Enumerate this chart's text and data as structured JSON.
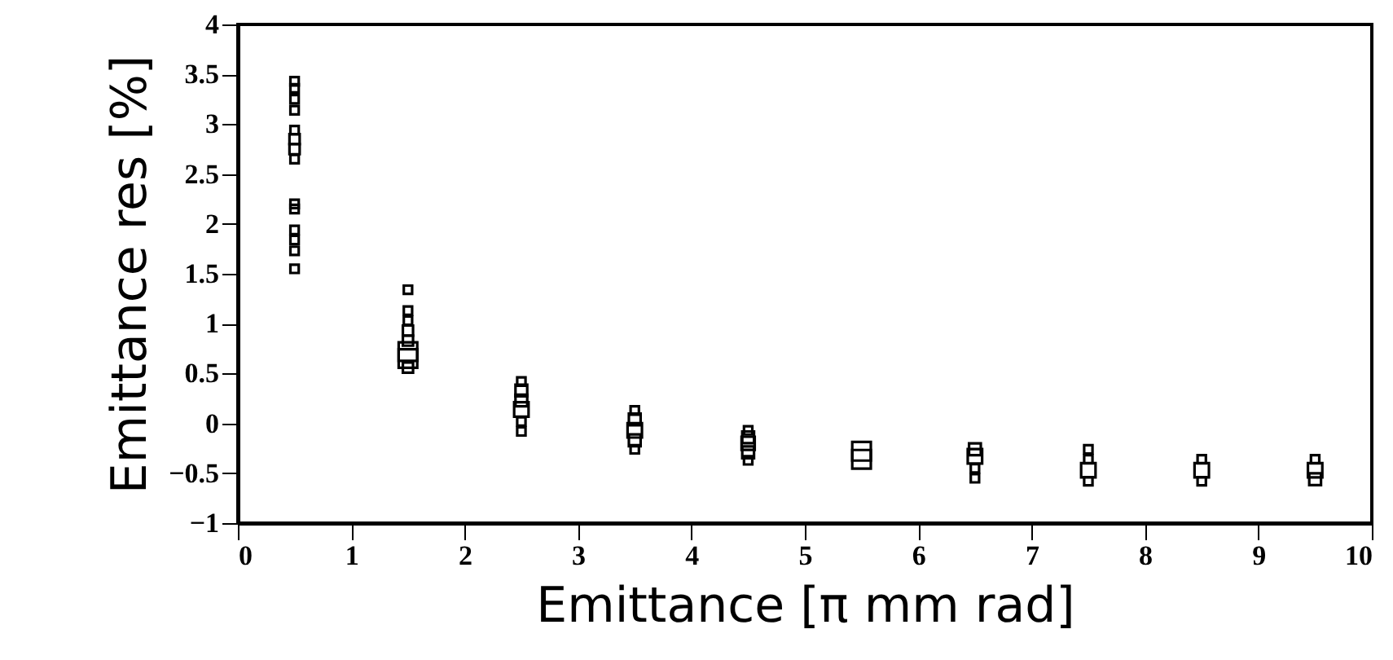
{
  "chart_data": {
    "type": "bubble",
    "xlabel": "Emittance [π mm rad]",
    "ylabel": "Emittance res [%]",
    "marker": "square",
    "grid": false,
    "xlim": [
      0,
      10
    ],
    "xticks": [
      0,
      1,
      2,
      3,
      4,
      5,
      6,
      7,
      8,
      9,
      10
    ],
    "ylim": [
      -1,
      4
    ],
    "yticks": [
      -1,
      -0.5,
      0,
      0.5,
      1,
      1.5,
      2,
      2.5,
      3,
      3.5,
      4
    ],
    "series": [
      {
        "color": "#000000",
        "x": [
          0.5,
          0.5,
          0.5,
          0.5,
          0.5,
          0.5,
          0.5,
          0.5,
          0.5,
          0.5,
          0.5,
          0.5,
          0.5,
          0.5,
          1.5,
          1.5,
          1.5,
          1.5,
          1.5,
          1.5,
          1.5,
          1.5,
          2.5,
          2.5,
          2.5,
          2.5,
          2.5,
          2.5,
          3.5,
          3.5,
          3.5,
          3.5,
          3.5,
          4.5,
          4.5,
          4.5,
          4.5,
          4.5,
          5.5,
          5.5,
          6.5,
          6.5,
          6.5,
          6.5,
          7.5,
          7.5,
          7.5,
          7.5,
          8.5,
          8.5,
          8.5,
          9.5,
          9.5,
          9.5
        ],
        "values": [
          3.43,
          3.36,
          3.25,
          3.14,
          2.94,
          2.85,
          2.75,
          2.65,
          2.2,
          2.15,
          1.94,
          1.84,
          1.73,
          1.55,
          1.34,
          1.13,
          1.03,
          0.93,
          0.83,
          0.72,
          0.65,
          0.56,
          0.42,
          0.33,
          0.23,
          0.14,
          0.02,
          -0.08,
          0.13,
          0.04,
          -0.07,
          -0.17,
          -0.26,
          -0.07,
          -0.14,
          -0.2,
          -0.29,
          -0.37,
          -0.28,
          -0.36,
          -0.26,
          -0.33,
          -0.45,
          -0.55,
          -0.26,
          -0.36,
          -0.47,
          -0.58,
          -0.36,
          -0.47,
          -0.58,
          -0.36,
          -0.47,
          -0.56
        ],
        "sizes": [
          0.2,
          0.2,
          0.2,
          0.2,
          0.2,
          0.3,
          0.3,
          0.2,
          0.2,
          0.2,
          0.2,
          0.2,
          0.2,
          0.2,
          0.2,
          0.2,
          0.2,
          0.3,
          0.3,
          1,
          1,
          0.3,
          0.2,
          0.4,
          0.4,
          0.6,
          0.2,
          0.2,
          0.2,
          0.4,
          0.6,
          0.4,
          0.2,
          0.2,
          0.4,
          0.5,
          0.4,
          0.2,
          1,
          1,
          0.4,
          0.6,
          0.2,
          0.2,
          0.2,
          0.2,
          0.6,
          0.2,
          0.2,
          0.6,
          0.2,
          0.2,
          0.6,
          0.4
        ]
      }
    ]
  }
}
